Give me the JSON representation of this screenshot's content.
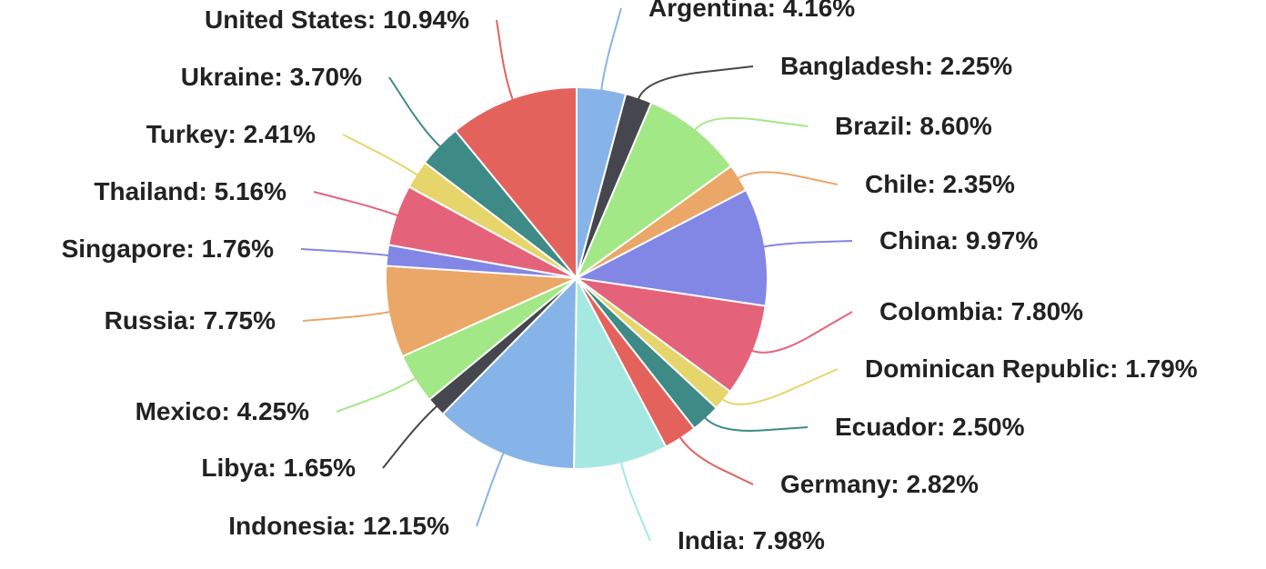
{
  "chart_data": {
    "type": "pie",
    "slices": [
      {
        "label": "Argentina: 4.16%",
        "name": "Argentina",
        "value": 4.16,
        "color": "#86b4e8"
      },
      {
        "label": "Bangladesh: 2.25%",
        "name": "Bangladesh",
        "value": 2.25,
        "color": "#46464e"
      },
      {
        "label": "Brazil: 8.60%",
        "name": "Brazil",
        "value": 8.6,
        "color": "#a2e886"
      },
      {
        "label": "Chile: 2.35%",
        "name": "Chile",
        "value": 2.35,
        "color": "#eaa768"
      },
      {
        "label": "China: 9.97%",
        "name": "China",
        "value": 9.97,
        "color": "#8286e4"
      },
      {
        "label": "Colombia: 7.80%",
        "name": "Colombia",
        "value": 7.8,
        "color": "#e4637a"
      },
      {
        "label": "Dominican Republic: 1.79%",
        "name": "Dominican Republic",
        "value": 1.79,
        "color": "#e6d56a"
      },
      {
        "label": "Ecuador: 2.50%",
        "name": "Ecuador",
        "value": 2.5,
        "color": "#3e8a86"
      },
      {
        "label": "Germany: 2.82%",
        "name": "Germany",
        "value": 2.82,
        "color": "#e4625c"
      },
      {
        "label": "India: 7.98%",
        "name": "India",
        "value": 7.98,
        "color": "#a5e8e2"
      },
      {
        "label": "Indonesia: 12.15%",
        "name": "Indonesia",
        "value": 12.15,
        "color": "#86b4e8"
      },
      {
        "label": "Libya: 1.65%",
        "name": "Libya",
        "value": 1.65,
        "color": "#46464e"
      },
      {
        "label": "Mexico: 4.25%",
        "name": "Mexico",
        "value": 4.25,
        "color": "#a2e886"
      },
      {
        "label": "Russia: 7.75%",
        "name": "Russia",
        "value": 7.75,
        "color": "#eaa768"
      },
      {
        "label": "Singapore: 1.76%",
        "name": "Singapore",
        "value": 1.76,
        "color": "#8286e4"
      },
      {
        "label": "Thailand: 5.16%",
        "name": "Thailand",
        "value": 5.16,
        "color": "#e4637a"
      },
      {
        "label": "Turkey: 2.41%",
        "name": "Turkey",
        "value": 2.41,
        "color": "#e6d56a"
      },
      {
        "label": "Ukraine: 3.70%",
        "name": "Ukraine",
        "value": 3.7,
        "color": "#3e8a86"
      },
      {
        "label": "United States: 10.94%",
        "name": "United States",
        "value": 10.94,
        "color": "#e4625c"
      }
    ],
    "legend": "none",
    "data_labels": "outside-with-leader-lines"
  }
}
